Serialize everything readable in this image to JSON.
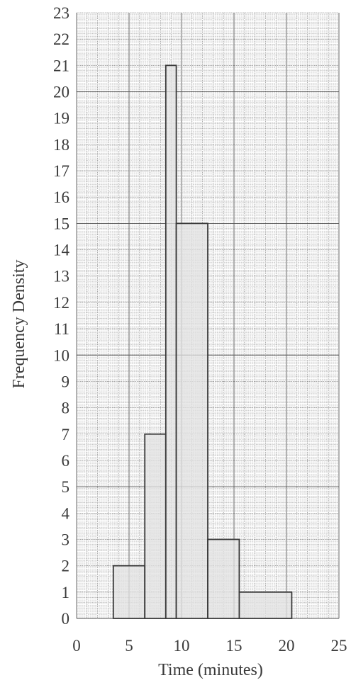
{
  "chart_data": {
    "type": "bar",
    "title": "",
    "xlabel": "Time (minutes)",
    "ylabel": "Frequency Density",
    "xlim": [
      0,
      25
    ],
    "ylim": [
      0,
      23
    ],
    "xticks": [
      "0",
      "5",
      "10",
      "15",
      "20",
      "25"
    ],
    "yticks": [
      "0",
      "1",
      "2",
      "3",
      "4",
      "5",
      "6",
      "7",
      "8",
      "9",
      "10",
      "11",
      "12",
      "13",
      "14",
      "15",
      "16",
      "17",
      "18",
      "19",
      "20",
      "21",
      "22",
      "23"
    ],
    "grid": true,
    "bars": [
      {
        "x0": 3.5,
        "x1": 6.5,
        "y": 2
      },
      {
        "x0": 6.5,
        "x1": 8.5,
        "y": 7
      },
      {
        "x0": 8.5,
        "x1": 9.5,
        "y": 21
      },
      {
        "x0": 9.5,
        "x1": 12.5,
        "y": 15
      },
      {
        "x0": 12.5,
        "x1": 15.5,
        "y": 3
      },
      {
        "x0": 15.5,
        "x1": 20.5,
        "y": 1
      }
    ]
  }
}
